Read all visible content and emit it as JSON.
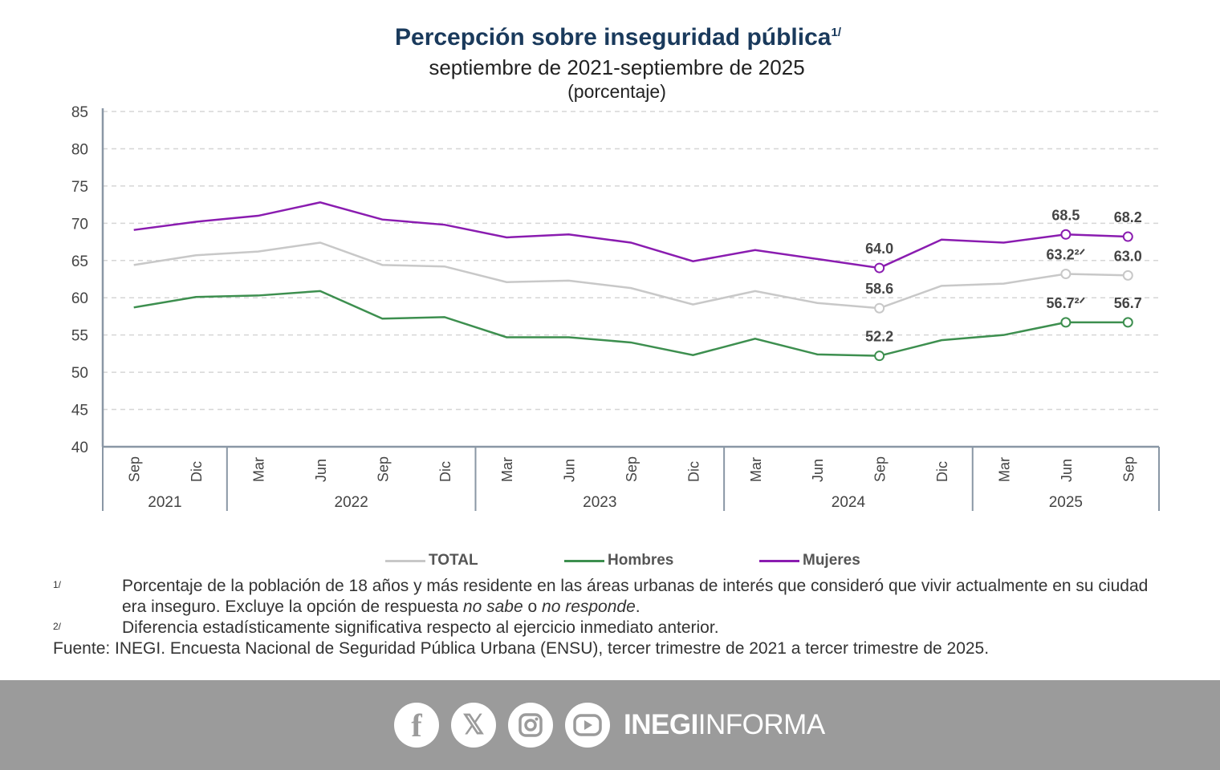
{
  "header": {
    "title": "Percepción sobre inseguridad pública",
    "title_note": "1/",
    "subtitle": "septiembre de 2021-septiembre de 2025",
    "unit": "(porcentaje)"
  },
  "chart_data": {
    "type": "line",
    "title": "Percepción sobre inseguridad pública",
    "ylim": [
      40,
      85
    ],
    "yticks": [
      40,
      45,
      50,
      55,
      60,
      65,
      70,
      75,
      80,
      85
    ],
    "grid": true,
    "legend_placement": "bottom",
    "categories": [
      "Sep",
      "Dic",
      "Mar",
      "Jun",
      "Sep",
      "Dic",
      "Mar",
      "Jun",
      "Sep",
      "Dic",
      "Mar",
      "Jun",
      "Sep",
      "Dic",
      "Mar",
      "Jun",
      "Sep"
    ],
    "years": [
      {
        "label": "2021",
        "span": 2
      },
      {
        "label": "2022",
        "span": 4
      },
      {
        "label": "2023",
        "span": 4
      },
      {
        "label": "2024",
        "span": 4
      },
      {
        "label": "2025",
        "span": 3
      }
    ],
    "series": [
      {
        "name": "TOTAL",
        "color": "#c8c8c8",
        "values": [
          64.4,
          65.7,
          66.2,
          67.4,
          64.4,
          64.2,
          62.1,
          62.3,
          61.3,
          59.1,
          60.9,
          59.3,
          58.6,
          61.6,
          61.9,
          63.2,
          63.0
        ],
        "labels": [
          {
            "index": 12,
            "text": "58.6"
          },
          {
            "index": 15,
            "text": "63.2²ᐟ"
          },
          {
            "index": 16,
            "text": "63.0"
          }
        ]
      },
      {
        "name": "Hombres",
        "color": "#3d8f4f",
        "values": [
          58.7,
          60.1,
          60.3,
          60.9,
          57.2,
          57.4,
          54.7,
          54.7,
          54.0,
          52.3,
          54.5,
          52.4,
          52.2,
          54.3,
          55.0,
          56.7,
          56.7
        ],
        "labels": [
          {
            "index": 12,
            "text": "52.2"
          },
          {
            "index": 15,
            "text": "56.7²ᐟ"
          },
          {
            "index": 16,
            "text": "56.7"
          }
        ]
      },
      {
        "name": "Mujeres",
        "color": "#8a1cb0",
        "values": [
          69.1,
          70.2,
          71.0,
          72.8,
          70.5,
          69.8,
          68.1,
          68.5,
          67.4,
          64.9,
          66.4,
          65.2,
          64.0,
          67.8,
          67.4,
          68.5,
          68.2
        ],
        "labels": [
          {
            "index": 12,
            "text": "64.0"
          },
          {
            "index": 15,
            "text": "68.5"
          },
          {
            "index": 16,
            "text": "68.2"
          }
        ]
      }
    ]
  },
  "notes": {
    "n1_mark": "1/",
    "n1_a": "Porcentaje de la población de 18 años y más residente en las áreas urbanas de interés que consideró que vivir actualmente en su ciudad era inseguro. Excluye la opción de respuesta ",
    "n1_i1": "no sabe",
    "n1_b": " o ",
    "n1_i2": "no responde",
    "n1_c": ".",
    "n2_mark": "2/",
    "n2": "Diferencia estadísticamente significativa respecto al ejercicio inmediato anterior.",
    "source": "Fuente: INEGI. Encuesta Nacional de Seguridad Pública Urbana (ENSU), tercer trimestre de 2021 a tercer trimestre de 2025."
  },
  "footer": {
    "icons": [
      "facebook-icon",
      "x-icon",
      "instagram-icon",
      "youtube-icon"
    ],
    "brand_bold": "INEGI",
    "brand_rest": "INFORMA"
  }
}
